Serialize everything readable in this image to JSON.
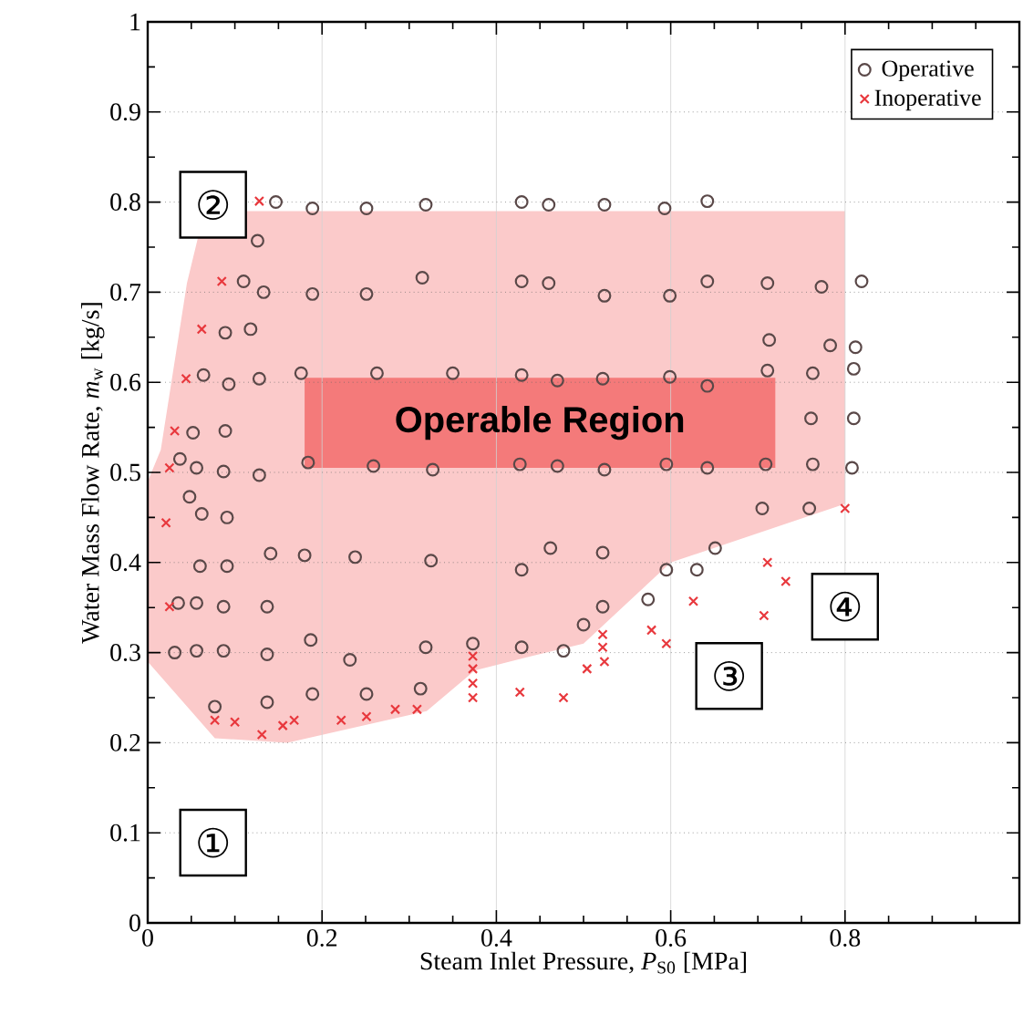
{
  "chart_data": {
    "type": "scatter",
    "xlabel": "Steam Inlet Pressure, *P*$_{S0}$ [MPa]",
    "ylabel": "Water Mass Flow Rate, *m*$_{w}$ [kg/s]",
    "xlim": [
      0,
      1
    ],
    "ylim": [
      0,
      1
    ],
    "xticks": [
      0,
      0.2,
      0.4,
      0.6,
      0.8,
      {
        "value": 1,
        "label": null
      }
    ],
    "yticks": [
      0,
      0.1,
      0.2,
      0.3,
      0.4,
      0.5,
      0.6,
      0.7,
      0.8,
      0.9,
      1
    ],
    "grid": true,
    "legend": "top right",
    "annotations": [
      {
        "text": "①",
        "x": 0.075,
        "y": 0.089
      },
      {
        "text": "②",
        "x": 0.075,
        "y": 0.797
      },
      {
        "text": "③",
        "x": 0.667,
        "y": 0.274
      },
      {
        "text": "④",
        "x": 0.8,
        "y": 0.351
      },
      "Operable Region"
    ],
    "series": [
      {
        "name": "Operative",
        "color": "#5a4848",
        "marker": "circle",
        "x": [
          0.147,
          0.189,
          0.251,
          0.319,
          0.429,
          0.46,
          0.524,
          0.593,
          0.642,
          0.126,
          0.11,
          0.133,
          0.189,
          0.251,
          0.315,
          0.429,
          0.46,
          0.524,
          0.599,
          0.642,
          0.711,
          0.773,
          0.819,
          0.089,
          0.118,
          0.713,
          0.783,
          0.812,
          0.064,
          0.093,
          0.128,
          0.176,
          0.263,
          0.35,
          0.429,
          0.47,
          0.522,
          0.599,
          0.642,
          0.711,
          0.763,
          0.81,
          0.052,
          0.089,
          0.761,
          0.81,
          0.037,
          0.056,
          0.087,
          0.128,
          0.184,
          0.259,
          0.327,
          0.427,
          0.47,
          0.524,
          0.595,
          0.642,
          0.709,
          0.763,
          0.808,
          0.048,
          0.062,
          0.091,
          0.705,
          0.759,
          0.06,
          0.091,
          0.141,
          0.18,
          0.238,
          0.325,
          0.429,
          0.462,
          0.522,
          0.595,
          0.63,
          0.651,
          0.035,
          0.056,
          0.087,
          0.137,
          0.5,
          0.574,
          0.522,
          0.031,
          0.056,
          0.087,
          0.137,
          0.187,
          0.232,
          0.319,
          0.373,
          0.429,
          0.477,
          0.077,
          0.137,
          0.189,
          0.251,
          0.313
        ],
        "values": [
          0.8,
          0.793,
          0.793,
          0.797,
          0.8,
          0.797,
          0.797,
          0.793,
          0.801,
          0.757,
          0.712,
          0.7,
          0.698,
          0.698,
          0.716,
          0.712,
          0.71,
          0.696,
          0.696,
          0.712,
          0.71,
          0.706,
          0.712,
          0.655,
          0.659,
          0.647,
          0.641,
          0.639,
          0.608,
          0.598,
          0.604,
          0.61,
          0.61,
          0.61,
          0.608,
          0.602,
          0.604,
          0.606,
          0.596,
          0.613,
          0.61,
          0.615,
          0.544,
          0.546,
          0.56,
          0.56,
          0.515,
          0.505,
          0.501,
          0.497,
          0.511,
          0.507,
          0.503,
          0.509,
          0.507,
          0.503,
          0.509,
          0.505,
          0.509,
          0.509,
          0.505,
          0.473,
          0.454,
          0.45,
          0.46,
          0.46,
          0.396,
          0.396,
          0.41,
          0.408,
          0.406,
          0.402,
          0.392,
          0.416,
          0.411,
          0.392,
          0.392,
          0.416,
          0.355,
          0.355,
          0.351,
          0.351,
          0.331,
          0.359,
          0.351,
          0.3,
          0.302,
          0.302,
          0.298,
          0.314,
          0.292,
          0.306,
          0.31,
          0.306,
          0.302,
          0.24,
          0.245,
          0.254,
          0.254,
          0.26
        ]
      },
      {
        "name": "Inoperative",
        "color": "#e8383d",
        "marker": "cross",
        "x": [
          0.128,
          0.085,
          0.062,
          0.044,
          0.031,
          0.025,
          0.021,
          0.025,
          0.077,
          0.1,
          0.131,
          0.155,
          0.168,
          0.222,
          0.251,
          0.284,
          0.309,
          0.373,
          0.373,
          0.373,
          0.373,
          0.427,
          0.477,
          0.504,
          0.522,
          0.522,
          0.524,
          0.578,
          0.595,
          0.626,
          0.707,
          0.711,
          0.732,
          0.8
        ],
        "values": [
          0.801,
          0.712,
          0.659,
          0.604,
          0.546,
          0.505,
          0.444,
          0.351,
          0.225,
          0.223,
          0.209,
          0.219,
          0.225,
          0.225,
          0.229,
          0.237,
          0.237,
          0.296,
          0.282,
          0.266,
          0.25,
          0.256,
          0.25,
          0.282,
          0.32,
          0.306,
          0.29,
          0.325,
          0.31,
          0.357,
          0.341,
          0.4,
          0.379,
          0.46
        ]
      }
    ]
  }
}
